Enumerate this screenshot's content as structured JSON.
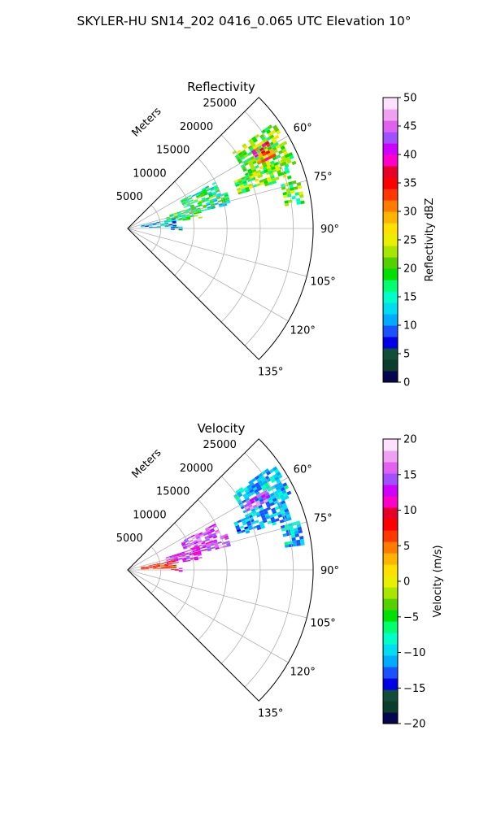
{
  "figure_title": "SKYLER-HU  SN14_202  0416_0.065 UTC Elevation 10°",
  "chart_data": [
    {
      "type": "heatmap",
      "subtype": "polar-sector",
      "title": "Reflectivity",
      "range_label": "Meters",
      "range_ticks": [
        "5000",
        "10000",
        "15000",
        "20000",
        "25000"
      ],
      "range_tick_values": [
        5000,
        10000,
        15000,
        20000,
        25000
      ],
      "range_max": 28000,
      "azimuth_ticks": [
        "60°",
        "75°",
        "90°",
        "105°",
        "120°",
        "135°"
      ],
      "azimuth_tick_values": [
        60,
        75,
        90,
        105,
        120,
        135
      ],
      "azimuth_range": [
        45,
        135
      ],
      "grid": true,
      "colorbar": {
        "label": "Reflectivity dBZ",
        "ticks": [
          "0",
          "5",
          "10",
          "15",
          "20",
          "25",
          "30",
          "35",
          "40",
          "45",
          "50"
        ],
        "tick_values": [
          0,
          5,
          10,
          15,
          20,
          25,
          30,
          35,
          40,
          45,
          50
        ],
        "range": [
          0,
          50
        ],
        "colors": [
          "#06064f",
          "#0a3d2c",
          "#124d3a",
          "#0000e6",
          "#1a52ff",
          "#00aaff",
          "#00dcf0",
          "#00ffc8",
          "#00ff6e",
          "#00e000",
          "#55d000",
          "#a8e600",
          "#e8f000",
          "#ffe000",
          "#ffb400",
          "#ff7c00",
          "#ff3800",
          "#ff0000",
          "#e60028",
          "#ff00c8",
          "#d000ff",
          "#a050ff",
          "#e060f0",
          "#f0a0f0",
          "#ffe0ff"
        ]
      },
      "echo_regions": [
        {
          "az": [
            54,
            69
          ],
          "r": [
            19500,
            26800
          ],
          "dbz": 22
        },
        {
          "az": [
            58,
            64
          ],
          "r": [
            22000,
            25000
          ],
          "dbz": 34
        },
        {
          "az": [
            66,
            73
          ],
          "r": [
            17500,
            25500
          ],
          "dbz": 21
        },
        {
          "az": [
            74,
            82
          ],
          "r": [
            24000,
            26800
          ],
          "dbz": 20
        },
        {
          "az": [
            62,
            70
          ],
          "r": [
            9000,
            15000
          ],
          "dbz": 17
        },
        {
          "az": [
            70,
            77
          ],
          "r": [
            10000,
            16000
          ],
          "dbz": 16
        },
        {
          "az": [
            72,
            82
          ],
          "r": [
            6000,
            11000
          ],
          "dbz": 18
        },
        {
          "az": [
            78,
            88
          ],
          "r": [
            2000,
            7000
          ],
          "dbz": 12
        },
        {
          "az": [
            88,
            92
          ],
          "r": [
            6500,
            8000
          ],
          "dbz": 10
        }
      ]
    },
    {
      "type": "heatmap",
      "subtype": "polar-sector",
      "title": "Velocity",
      "range_label": "Meters",
      "range_ticks": [
        "5000",
        "10000",
        "15000",
        "20000",
        "25000"
      ],
      "range_tick_values": [
        5000,
        10000,
        15000,
        20000,
        25000
      ],
      "range_max": 28000,
      "azimuth_ticks": [
        "60°",
        "75°",
        "90°",
        "105°",
        "120°",
        "135°"
      ],
      "azimuth_tick_values": [
        60,
        75,
        90,
        105,
        120,
        135
      ],
      "azimuth_range": [
        45,
        135
      ],
      "grid": true,
      "colorbar": {
        "label": "Velocity (m/s)",
        "ticks": [
          "−20",
          "−15",
          "−10",
          "−5",
          "0",
          "5",
          "10",
          "15",
          "20"
        ],
        "tick_values": [
          -20,
          -15,
          -10,
          -5,
          0,
          5,
          10,
          15,
          20
        ],
        "range": [
          -20,
          20
        ],
        "colors": [
          "#06064f",
          "#0a3d2c",
          "#124d3a",
          "#0000e6",
          "#1a52ff",
          "#00aaff",
          "#00dcf0",
          "#00ffc8",
          "#00ff6e",
          "#00e000",
          "#55d000",
          "#a8e600",
          "#e8f000",
          "#ffe000",
          "#ffb400",
          "#ff7c00",
          "#ff3800",
          "#ff0000",
          "#e60028",
          "#ff00c8",
          "#d000ff",
          "#a050ff",
          "#e060f0",
          "#f0a0f0",
          "#ffe0ff"
        ]
      },
      "echo_regions": [
        {
          "az": [
            54,
            66
          ],
          "r": [
            19500,
            26800
          ],
          "v": -10
        },
        {
          "az": [
            60,
            64
          ],
          "r": [
            20000,
            24000
          ],
          "v": 15
        },
        {
          "az": [
            66,
            73
          ],
          "r": [
            17500,
            25500
          ],
          "v": -11
        },
        {
          "az": [
            74,
            82
          ],
          "r": [
            24000,
            26800
          ],
          "v": -10
        },
        {
          "az": [
            62,
            70
          ],
          "r": [
            9000,
            15000
          ],
          "v": 15
        },
        {
          "az": [
            70,
            77
          ],
          "r": [
            10000,
            16000
          ],
          "v": 14
        },
        {
          "az": [
            72,
            82
          ],
          "r": [
            6000,
            11000
          ],
          "v": 13
        },
        {
          "az": [
            78,
            88
          ],
          "r": [
            2000,
            7000
          ],
          "v": 7
        },
        {
          "az": [
            88,
            92
          ],
          "r": [
            6500,
            8000
          ],
          "v": 10
        }
      ]
    }
  ]
}
